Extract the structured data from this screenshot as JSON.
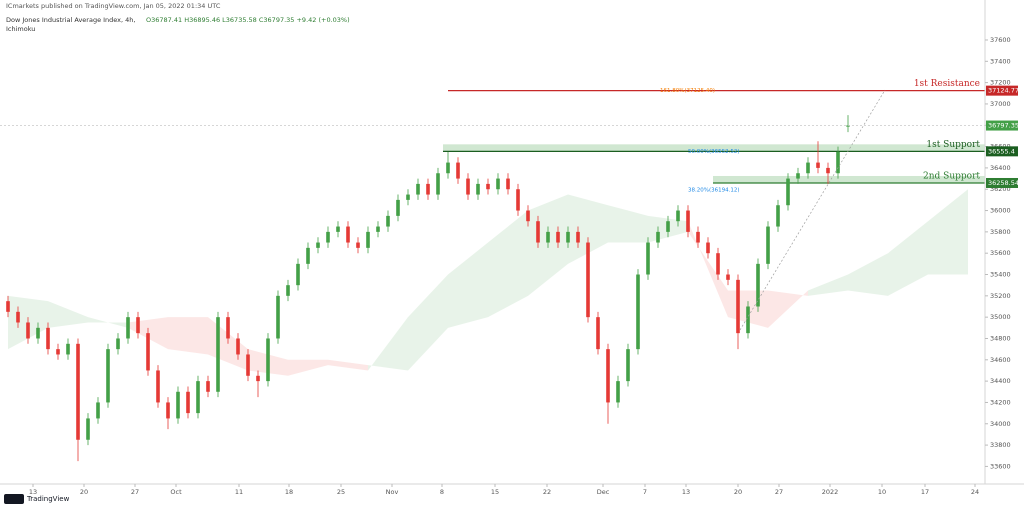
{
  "header": {
    "publisher": "ICmarkets published on TradingView.com, Jan 05, 2022 01:34 UTC",
    "symbol": "Dow Jones Industrial Average Index, 4h,",
    "indicator": "Ichimoku",
    "ohlc": "O36787.41 H36895.46 L36735.58 C36797.35 +9.42 (+0.03%)"
  },
  "footer": {
    "brand": "TradingView"
  },
  "chart_data": {
    "type": "candlestick",
    "up_color": "#43a047",
    "down_color": "#e53935",
    "ylim": [
      33435,
      37975
    ],
    "xlim": [
      -0.8,
      97.7
    ],
    "yticks": [
      33600,
      33800,
      34000,
      34200,
      34400,
      34600,
      34800,
      35000,
      35200,
      35400,
      35600,
      35800,
      36000,
      36200,
      36400,
      36600,
      36800,
      37000,
      37200,
      37400,
      37600
    ],
    "xticks": [
      {
        "value": 2.5,
        "label": "13"
      },
      {
        "value": 7.6,
        "label": "20"
      },
      {
        "value": 12.7,
        "label": "27"
      },
      {
        "value": 16.8,
        "label": "Oct"
      },
      {
        "value": 23.1,
        "label": "11"
      },
      {
        "value": 28.1,
        "label": "18"
      },
      {
        "value": 33.3,
        "label": "25"
      },
      {
        "value": 38.4,
        "label": "Nov"
      },
      {
        "value": 43.4,
        "label": "8"
      },
      {
        "value": 48.7,
        "label": "15"
      },
      {
        "value": 53.9,
        "label": "22"
      },
      {
        "value": 59.5,
        "label": "Dec"
      },
      {
        "value": 63.7,
        "label": "7"
      },
      {
        "value": 67.8,
        "label": "13"
      },
      {
        "value": 73,
        "label": "20"
      },
      {
        "value": 77.1,
        "label": "27"
      },
      {
        "value": 82.2,
        "label": "2022"
      },
      {
        "value": 87.4,
        "label": "10"
      },
      {
        "value": 91.7,
        "label": "17"
      },
      {
        "value": 96.7,
        "label": "24"
      }
    ],
    "ohlc": [
      [
        35150,
        35200,
        35000,
        35050
      ],
      [
        35050,
        35100,
        34900,
        34950
      ],
      [
        34950,
        35000,
        34750,
        34800
      ],
      [
        34800,
        34950,
        34750,
        34900
      ],
      [
        34900,
        34950,
        34650,
        34700
      ],
      [
        34700,
        34750,
        34600,
        34650
      ],
      [
        34650,
        34800,
        34600,
        34750
      ],
      [
        34750,
        34800,
        33650,
        33850
      ],
      [
        33850,
        34100,
        33800,
        34050
      ],
      [
        34050,
        34250,
        34000,
        34200
      ],
      [
        34200,
        34750,
        34150,
        34700
      ],
      [
        34700,
        34850,
        34650,
        34800
      ],
      [
        34800,
        35050,
        34750,
        35000
      ],
      [
        35000,
        35050,
        34800,
        34850
      ],
      [
        34850,
        34900,
        34450,
        34500
      ],
      [
        34500,
        34550,
        34150,
        34200
      ],
      [
        34200,
        34250,
        33950,
        34050
      ],
      [
        34050,
        34350,
        34000,
        34300
      ],
      [
        34300,
        34350,
        34050,
        34100
      ],
      [
        34100,
        34450,
        34050,
        34400
      ],
      [
        34400,
        34450,
        34250,
        34300
      ],
      [
        34300,
        35050,
        34250,
        35000
      ],
      [
        35000,
        35050,
        34750,
        34800
      ],
      [
        34800,
        34850,
        34600,
        34650
      ],
      [
        34650,
        34700,
        34400,
        34450
      ],
      [
        34450,
        34500,
        34250,
        34400
      ],
      [
        34400,
        34850,
        34350,
        34800
      ],
      [
        34800,
        35250,
        34750,
        35200
      ],
      [
        35200,
        35350,
        35150,
        35300
      ],
      [
        35300,
        35550,
        35250,
        35500
      ],
      [
        35500,
        35700,
        35450,
        35650
      ],
      [
        35650,
        35750,
        35600,
        35700
      ],
      [
        35700,
        35850,
        35650,
        35800
      ],
      [
        35800,
        35900,
        35750,
        35850
      ],
      [
        35850,
        35900,
        35650,
        35700
      ],
      [
        35700,
        35750,
        35600,
        35650
      ],
      [
        35650,
        35850,
        35600,
        35800
      ],
      [
        35800,
        35900,
        35750,
        35850
      ],
      [
        35850,
        36000,
        35800,
        35950
      ],
      [
        35950,
        36150,
        35900,
        36100
      ],
      [
        36100,
        36200,
        36050,
        36150
      ],
      [
        36150,
        36300,
        36100,
        36250
      ],
      [
        36250,
        36300,
        36100,
        36150
      ],
      [
        36150,
        36400,
        36100,
        36350
      ],
      [
        36350,
        36550,
        36300,
        36450
      ],
      [
        36450,
        36500,
        36250,
        36300
      ],
      [
        36300,
        36350,
        36100,
        36150
      ],
      [
        36150,
        36300,
        36100,
        36250
      ],
      [
        36250,
        36300,
        36150,
        36200
      ],
      [
        36200,
        36350,
        36150,
        36300
      ],
      [
        36300,
        36350,
        36150,
        36200
      ],
      [
        36200,
        36250,
        35950,
        36000
      ],
      [
        36000,
        36050,
        35850,
        35900
      ],
      [
        35900,
        35950,
        35650,
        35700
      ],
      [
        35700,
        35850,
        35650,
        35800
      ],
      [
        35800,
        35850,
        35650,
        35700
      ],
      [
        35700,
        35850,
        35650,
        35800
      ],
      [
        35800,
        35850,
        35650,
        35700
      ],
      [
        35700,
        35750,
        34950,
        35000
      ],
      [
        35000,
        35050,
        34650,
        34700
      ],
      [
        34700,
        34750,
        34000,
        34200
      ],
      [
        34200,
        34450,
        34150,
        34400
      ],
      [
        34400,
        34750,
        34350,
        34700
      ],
      [
        34700,
        35450,
        34650,
        35400
      ],
      [
        35400,
        35750,
        35350,
        35700
      ],
      [
        35700,
        35850,
        35650,
        35800
      ],
      [
        35800,
        35950,
        35750,
        35900
      ],
      [
        35900,
        36050,
        35850,
        36000
      ],
      [
        36000,
        36050,
        35750,
        35800
      ],
      [
        35800,
        35850,
        35650,
        35700
      ],
      [
        35700,
        35750,
        35550,
        35600
      ],
      [
        35600,
        35650,
        35350,
        35400
      ],
      [
        35400,
        35450,
        35300,
        35350
      ],
      [
        35350,
        35400,
        34700,
        34850
      ],
      [
        34850,
        35150,
        34800,
        35100
      ],
      [
        35100,
        35550,
        35050,
        35500
      ],
      [
        35500,
        35900,
        35450,
        35850
      ],
      [
        35850,
        36100,
        35800,
        36050
      ],
      [
        36050,
        36350,
        36000,
        36300
      ],
      [
        36300,
        36400,
        36250,
        36350
      ],
      [
        36350,
        36500,
        36300,
        36450
      ],
      [
        36450,
        36650,
        36350,
        36400
      ],
      [
        36400,
        36450,
        36250,
        36350
      ],
      [
        36350,
        36600,
        36300,
        36550
      ],
      [
        36787.41,
        36895.46,
        36735.58,
        36797.35
      ]
    ],
    "cloud": {
      "x": [
        0,
        4,
        8,
        12,
        16,
        20,
        24,
        28,
        32,
        36,
        40,
        44,
        48,
        52,
        56,
        60,
        64,
        68,
        72,
        76,
        80,
        84,
        88,
        92,
        96
      ],
      "span_a": [
        35200,
        35150,
        35000,
        34900,
        34700,
        34650,
        34500,
        34450,
        34550,
        34500,
        35000,
        35400,
        35700,
        36000,
        36150,
        36050,
        35950,
        35900,
        35000,
        34900,
        35250,
        35400,
        35600,
        35900,
        36200
      ],
      "span_b": [
        34700,
        34900,
        34950,
        34950,
        35000,
        35000,
        34700,
        34600,
        34600,
        34550,
        34500,
        34900,
        35000,
        35200,
        35500,
        35700,
        35700,
        35800,
        35250,
        35250,
        35200,
        35250,
        35200,
        35400,
        35400
      ]
    },
    "levels": [
      {
        "name": "1st Resistance",
        "value": 37124.77,
        "color": "#c62828",
        "fib": "161.80%(37125.40)"
      },
      {
        "name": "1st Support",
        "value": 36555.4,
        "color": "#1b5e20",
        "fib": "50.00%(36552.52)"
      },
      {
        "name": "2nd Support",
        "value": 36258.54,
        "color": "#2e7d32",
        "fib": "38.20%(36194.12)"
      }
    ],
    "last_price": 36797.35
  }
}
